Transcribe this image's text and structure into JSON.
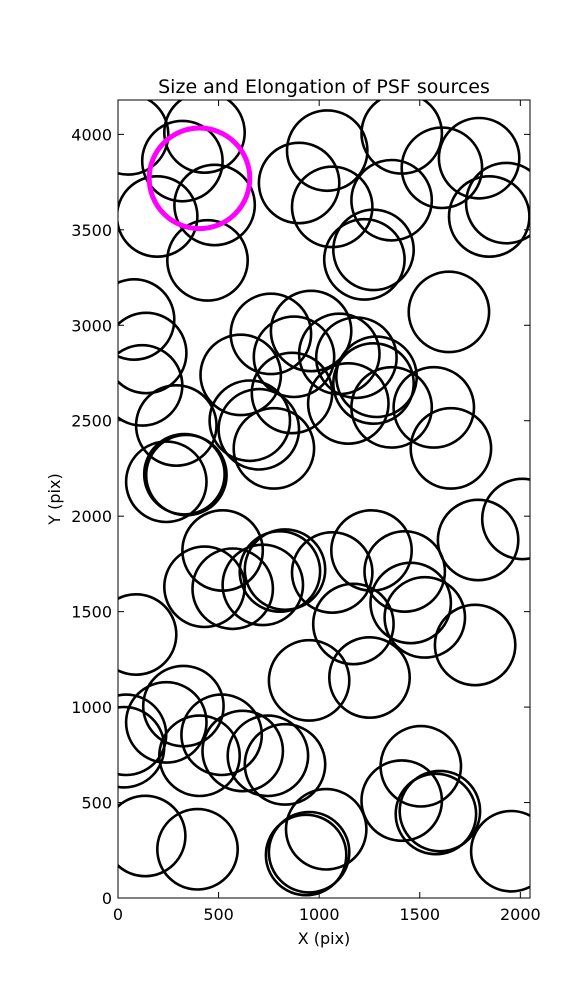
{
  "chart_data": {
    "type": "scatter",
    "title": "Size and Elongation of PSF sources",
    "xlabel": "X (pix)",
    "ylabel": "Y (pix)",
    "xlim": [
      0,
      2048
    ],
    "ylim": [
      0,
      4180
    ],
    "xticks": [
      0,
      500,
      1000,
      1500,
      2000
    ],
    "yticks": [
      0,
      500,
      1000,
      1500,
      2000,
      2500,
      3000,
      3500,
      4000
    ],
    "grid": false,
    "legend": "none",
    "marker": "circle",
    "marker_radius_x_units": 200,
    "colors": {
      "circle": "#000000",
      "highlight": "#ff00ff"
    },
    "highlight": {
      "x": 405,
      "y": 3770
    },
    "points": [
      {
        "x": 50,
        "y": 4000
      },
      {
        "x": 430,
        "y": 4010
      },
      {
        "x": 320,
        "y": 3860
      },
      {
        "x": 480,
        "y": 3630
      },
      {
        "x": 195,
        "y": 3570
      },
      {
        "x": 445,
        "y": 3340
      },
      {
        "x": 1040,
        "y": 3915
      },
      {
        "x": 1410,
        "y": 4005
      },
      {
        "x": 1795,
        "y": 3875
      },
      {
        "x": 1610,
        "y": 3825
      },
      {
        "x": 900,
        "y": 3745
      },
      {
        "x": 1065,
        "y": 3620
      },
      {
        "x": 1360,
        "y": 3655
      },
      {
        "x": 1930,
        "y": 3640
      },
      {
        "x": 1845,
        "y": 3570
      },
      {
        "x": 1270,
        "y": 3395
      },
      {
        "x": 1225,
        "y": 3345
      },
      {
        "x": 1645,
        "y": 3070
      },
      {
        "x": 80,
        "y": 3030
      },
      {
        "x": 140,
        "y": 2855
      },
      {
        "x": 760,
        "y": 2955
      },
      {
        "x": 960,
        "y": 2970
      },
      {
        "x": 875,
        "y": 2835
      },
      {
        "x": 1100,
        "y": 2850
      },
      {
        "x": 1185,
        "y": 2830
      },
      {
        "x": 1285,
        "y": 2730
      },
      {
        "x": 1270,
        "y": 2695
      },
      {
        "x": 120,
        "y": 2685
      },
      {
        "x": 610,
        "y": 2740
      },
      {
        "x": 865,
        "y": 2645
      },
      {
        "x": 1145,
        "y": 2590
      },
      {
        "x": 1360,
        "y": 2570
      },
      {
        "x": 1570,
        "y": 2570
      },
      {
        "x": 655,
        "y": 2500
      },
      {
        "x": 700,
        "y": 2455
      },
      {
        "x": 290,
        "y": 2475
      },
      {
        "x": 775,
        "y": 2355
      },
      {
        "x": 1655,
        "y": 2355
      },
      {
        "x": 240,
        "y": 2180
      },
      {
        "x": 330,
        "y": 2220
      },
      {
        "x": 340,
        "y": 2215
      },
      {
        "x": 2010,
        "y": 1985
      },
      {
        "x": 1790,
        "y": 1875
      },
      {
        "x": 520,
        "y": 1820
      },
      {
        "x": 830,
        "y": 1720
      },
      {
        "x": 805,
        "y": 1710
      },
      {
        "x": 1065,
        "y": 1705
      },
      {
        "x": 1260,
        "y": 1820
      },
      {
        "x": 1425,
        "y": 1710
      },
      {
        "x": 430,
        "y": 1630
      },
      {
        "x": 570,
        "y": 1620
      },
      {
        "x": 720,
        "y": 1640
      },
      {
        "x": 1455,
        "y": 1545
      },
      {
        "x": 1525,
        "y": 1470
      },
      {
        "x": 1170,
        "y": 1435
      },
      {
        "x": 90,
        "y": 1380
      },
      {
        "x": 1775,
        "y": 1325
      },
      {
        "x": 950,
        "y": 1140
      },
      {
        "x": 1250,
        "y": 1155
      },
      {
        "x": 325,
        "y": 1005
      },
      {
        "x": 240,
        "y": 920
      },
      {
        "x": 40,
        "y": 855
      },
      {
        "x": 30,
        "y": 790
      },
      {
        "x": 515,
        "y": 855
      },
      {
        "x": 405,
        "y": 745
      },
      {
        "x": 620,
        "y": 770
      },
      {
        "x": 745,
        "y": 745
      },
      {
        "x": 830,
        "y": 700
      },
      {
        "x": 1505,
        "y": 690
      },
      {
        "x": 1410,
        "y": 510
      },
      {
        "x": 1600,
        "y": 455
      },
      {
        "x": 1580,
        "y": 440
      },
      {
        "x": 135,
        "y": 325
      },
      {
        "x": 395,
        "y": 255
      },
      {
        "x": 1035,
        "y": 360
      },
      {
        "x": 950,
        "y": 240
      },
      {
        "x": 935,
        "y": 225
      },
      {
        "x": 1955,
        "y": 245
      }
    ]
  }
}
